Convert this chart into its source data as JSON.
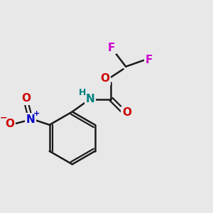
{
  "background_color": "#e8e8e8",
  "bond_color": "#1a1a1a",
  "F_color": "#cc00cc",
  "O_color": "#cc0000",
  "N_nitro_color": "#0000cc",
  "N_NH_color": "#008080",
  "H_color": "#008080",
  "figsize": [
    3.0,
    3.0
  ],
  "dpi": 100,
  "xlim": [
    0,
    10
  ],
  "ylim": [
    0,
    10
  ]
}
